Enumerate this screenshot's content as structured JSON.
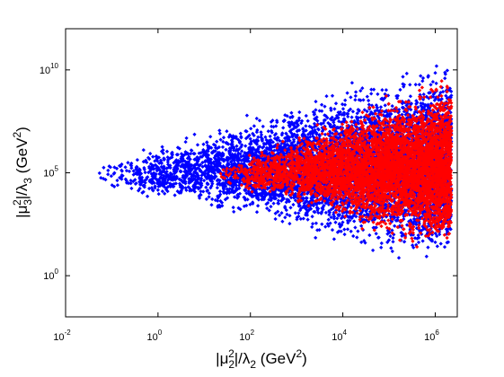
{
  "chart_data": {
    "type": "scatter",
    "title": "",
    "x_scale": "log",
    "y_scale": "log",
    "xlim": [
      0.01,
      3000000
    ],
    "ylim": [
      0.01,
      1000000000000
    ],
    "grid": false,
    "legend": "none",
    "xlabel": {
      "pre": "|μ",
      "sub1": "2",
      "sup1": "2",
      "mid": "|/λ",
      "sub2": "2",
      "unit_pre": " (GeV",
      "unit_sup": "2",
      "unit_post": ")"
    },
    "ylabel": {
      "pre": "|μ",
      "sub1": "3",
      "sup1": "2",
      "mid": "|/λ",
      "sub2": "3",
      "unit_pre": " (GeV",
      "unit_sup": "2",
      "unit_post": ")"
    },
    "x_ticks": [
      {
        "value": 0.01,
        "base": "10",
        "exp": "-2"
      },
      {
        "value": 1,
        "base": "10",
        "exp": "0"
      },
      {
        "value": 100,
        "base": "10",
        "exp": "2"
      },
      {
        "value": 10000,
        "base": "10",
        "exp": "4"
      },
      {
        "value": 1000000,
        "base": "10",
        "exp": "6"
      }
    ],
    "y_ticks": [
      {
        "value": 1,
        "base": "10",
        "exp": "0"
      },
      {
        "value": 100000,
        "base": "10",
        "exp": "5"
      },
      {
        "value": 10000000000,
        "base": "10",
        "exp": "10"
      }
    ],
    "series": [
      {
        "color": "#0000ff",
        "marker": "diamond",
        "envelope_log10": {
          "x_min": -1.35,
          "x_max": 6.35,
          "y_center_at_x_min": 4.9,
          "y_center_at_x_max": 5.5,
          "y_halfwidth_at_x_min": 0.6,
          "y_halfwidth_at_x_max": 5.3
        }
      },
      {
        "color": "#ff0000",
        "marker": "diamond",
        "envelope_log10": {
          "x_min": 1.3,
          "x_max": 6.35,
          "y_center_at_x_min": 4.9,
          "y_center_at_x_max": 5.4,
          "y_halfwidth_at_x_min": 0.4,
          "y_halfwidth_at_x_max": 4.6
        }
      }
    ]
  }
}
